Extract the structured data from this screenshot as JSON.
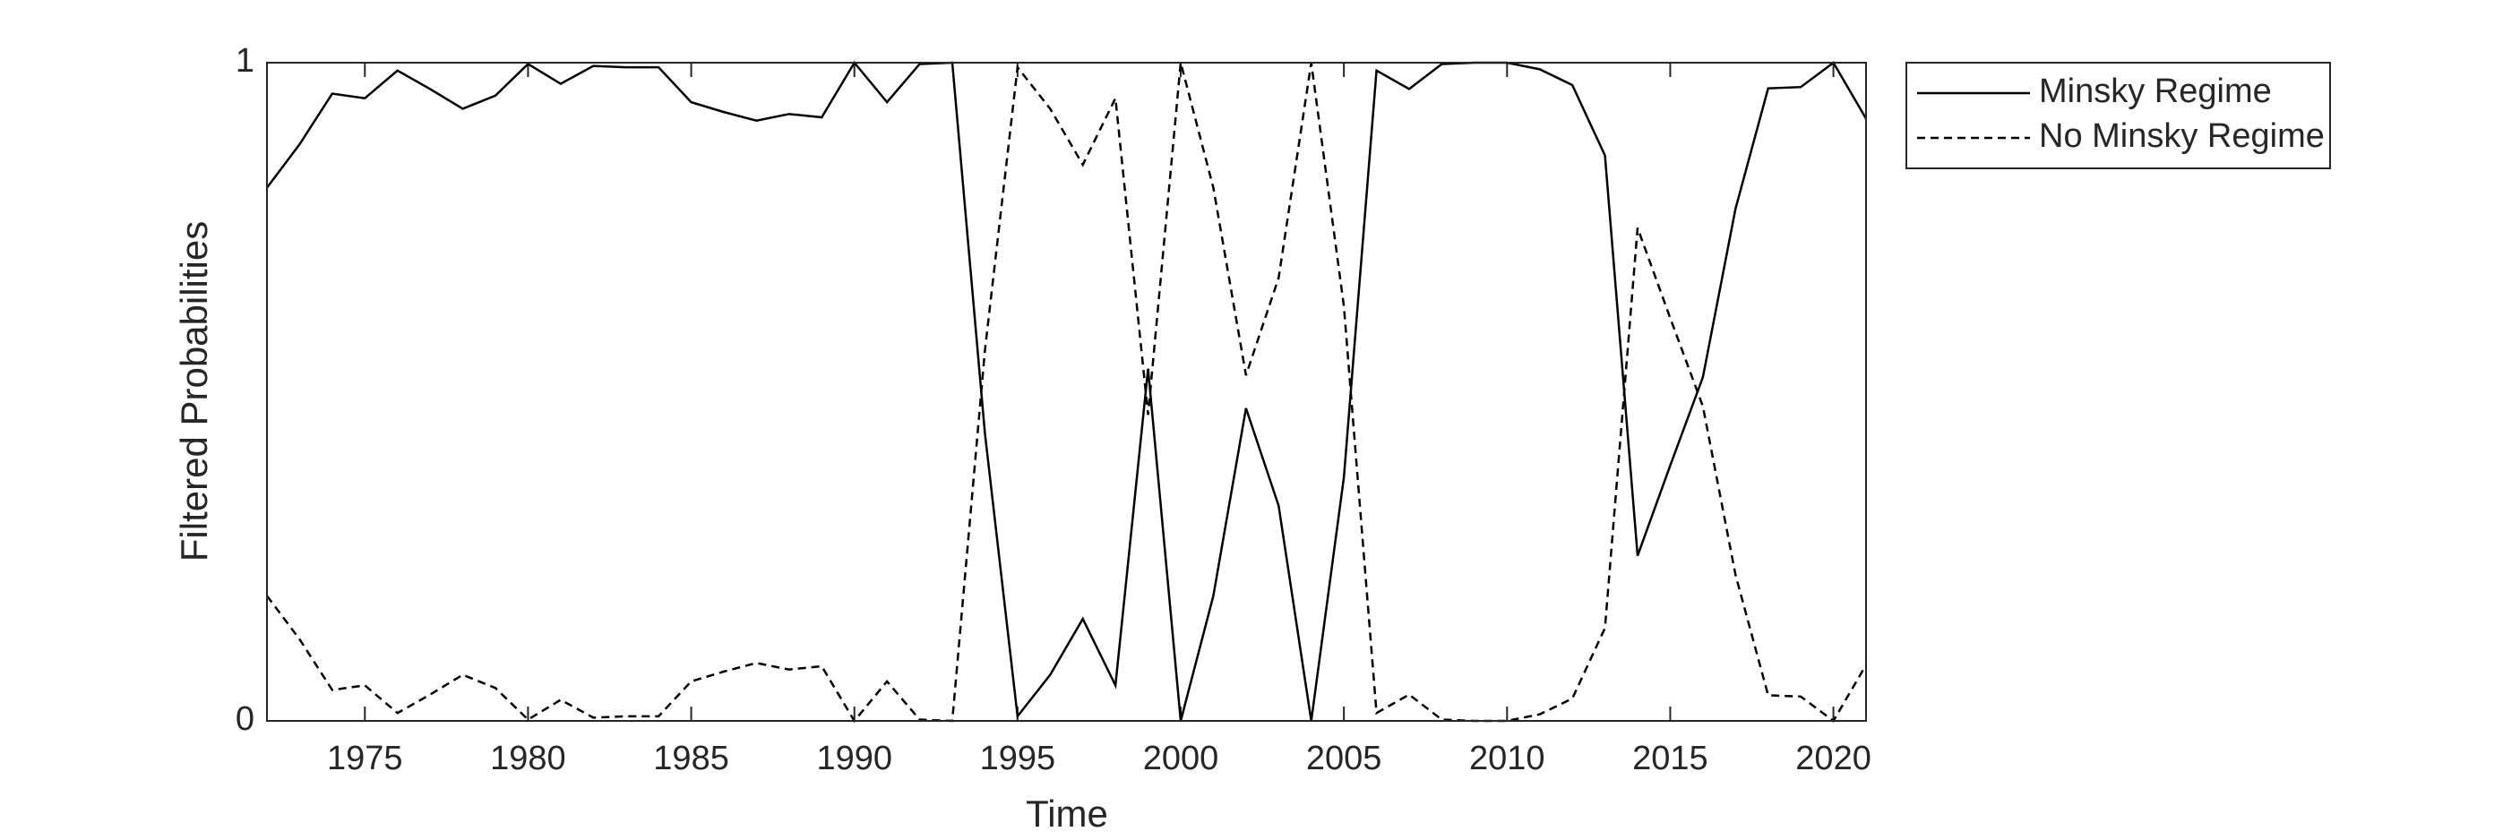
{
  "chart_data": {
    "type": "line",
    "xlabel": "Time",
    "ylabel": "Filtered Probabilities",
    "x": [
      1972,
      1973,
      1974,
      1975,
      1976,
      1977,
      1978,
      1979,
      1980,
      1981,
      1982,
      1983,
      1984,
      1985,
      1986,
      1987,
      1988,
      1989,
      1990,
      1991,
      1992,
      1993,
      1994,
      1995,
      1996,
      1997,
      1998,
      1999,
      2000,
      2001,
      2002,
      2003,
      2004,
      2005,
      2006,
      2007,
      2008,
      2009,
      2010,
      2011,
      2012,
      2013,
      2014,
      2015,
      2016,
      2017,
      2018,
      2019,
      2020,
      2021
    ],
    "series": [
      {
        "name": "Minsky Regime",
        "color": "#000000",
        "line_style": "solid",
        "values": [
          0.81,
          0.876,
          0.953,
          0.946,
          0.988,
          0.96,
          0.93,
          0.95,
          0.998,
          0.968,
          0.995,
          0.993,
          0.993,
          0.94,
          0.925,
          0.912,
          0.922,
          0.917,
          1.0,
          0.94,
          0.998,
          1.0,
          0.437,
          0.007,
          0.07,
          0.155,
          0.054,
          0.535,
          0.0,
          0.19,
          0.475,
          0.327,
          0.0,
          0.37,
          0.988,
          0.96,
          0.998,
          1.0,
          1.0,
          0.99,
          0.966,
          0.859,
          0.251,
          0.388,
          0.522,
          0.778,
          0.961,
          0.963,
          1.0,
          0.915
        ]
      },
      {
        "name": "No Minsky Regime",
        "color": "#000000",
        "line_style": "dashed",
        "values": [
          0.19,
          0.124,
          0.047,
          0.054,
          0.012,
          0.04,
          0.07,
          0.05,
          0.002,
          0.032,
          0.005,
          0.007,
          0.007,
          0.06,
          0.075,
          0.088,
          0.078,
          0.083,
          0.0,
          0.06,
          0.002,
          0.0,
          0.563,
          0.993,
          0.93,
          0.845,
          0.946,
          0.465,
          1.0,
          0.81,
          0.525,
          0.673,
          1.0,
          0.63,
          0.012,
          0.04,
          0.002,
          0.0,
          0.0,
          0.01,
          0.034,
          0.141,
          0.749,
          0.612,
          0.478,
          0.222,
          0.039,
          0.037,
          0.0,
          0.085
        ]
      }
    ],
    "xlim": [
      1972,
      2021
    ],
    "xticks": [
      1975,
      1980,
      1985,
      1990,
      1995,
      2000,
      2005,
      2010,
      2015,
      2020
    ],
    "ylim": [
      0,
      1
    ],
    "yticks": [
      0,
      1
    ],
    "grid": false,
    "legend": "outside-top-right"
  }
}
